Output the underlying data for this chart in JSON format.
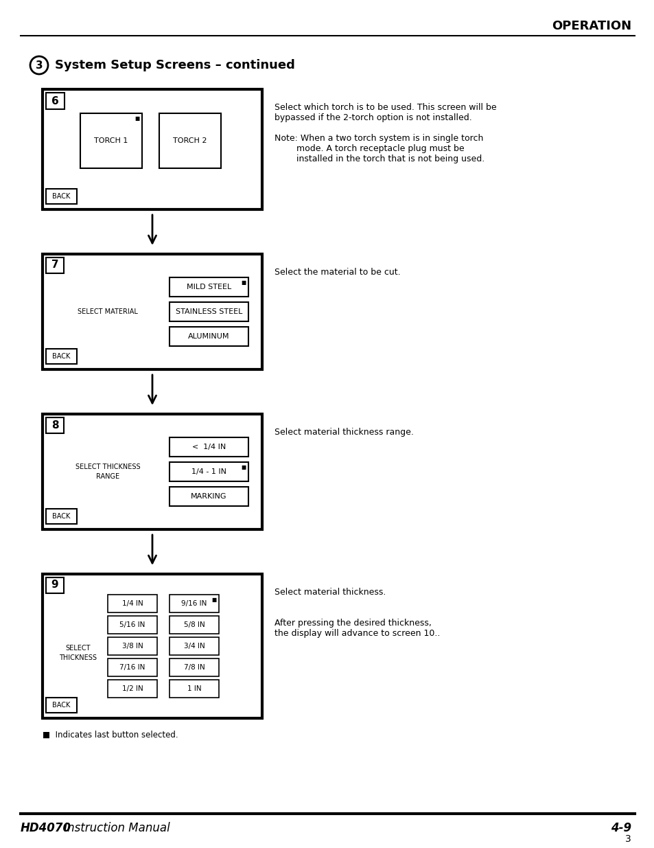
{
  "bg_color": "#ffffff",
  "title_header": "OPERATION",
  "section_title": "System Setup Screens – continued",
  "screen6": {
    "number": "6",
    "torch1": "TORCH 1",
    "torch2": "TORCH 2",
    "back": "BACK"
  },
  "screen7": {
    "number": "7",
    "label": "SELECT MATERIAL",
    "buttons": [
      "MILD STEEL",
      "STAINLESS STEEL",
      "ALUMINUM"
    ],
    "back": "BACK",
    "marked_button": 0
  },
  "screen8": {
    "number": "8",
    "label": "SELECT THICKNESS\nRANGE",
    "buttons": [
      "<  1/4 IN",
      "1/4 - 1 IN",
      "MARKING"
    ],
    "back": "BACK",
    "marked_button": 1
  },
  "screen9": {
    "number": "9",
    "label": "SELECT\nTHICKNESS",
    "col1_buttons": [
      "1/4 IN",
      "5/16 IN",
      "3/8 IN",
      "7/16 IN",
      "1/2 IN"
    ],
    "col2_buttons": [
      "9/16 IN",
      "5/8 IN",
      "3/4 IN",
      "7/8 IN",
      "1 IN"
    ],
    "back": "BACK",
    "marked_col": 1,
    "marked_row": 0
  },
  "desc6_line1": "Select which torch is to be used. This screen will be",
  "desc6_line2": "bypassed if the 2-torch option is not installed.",
  "note6_line1": "Note: When a two torch system is in single torch",
  "note6_line2": "        mode. A torch receptacle plug must be",
  "note6_line3": "        installed in the torch that is not being used.",
  "desc7": "Select the material to be cut.",
  "desc8": "Select material thickness range.",
  "desc9a": "Select material thickness.",
  "desc9b_line1": "After pressing the desired thickness,",
  "desc9b_line2": "the display will advance to screen 10..",
  "footnote": "■  Indicates last button selected.",
  "footer_bold": "HD4070",
  "footer_normal": " Instruction Manual",
  "footer_right": "4-9",
  "footer_page": "3"
}
